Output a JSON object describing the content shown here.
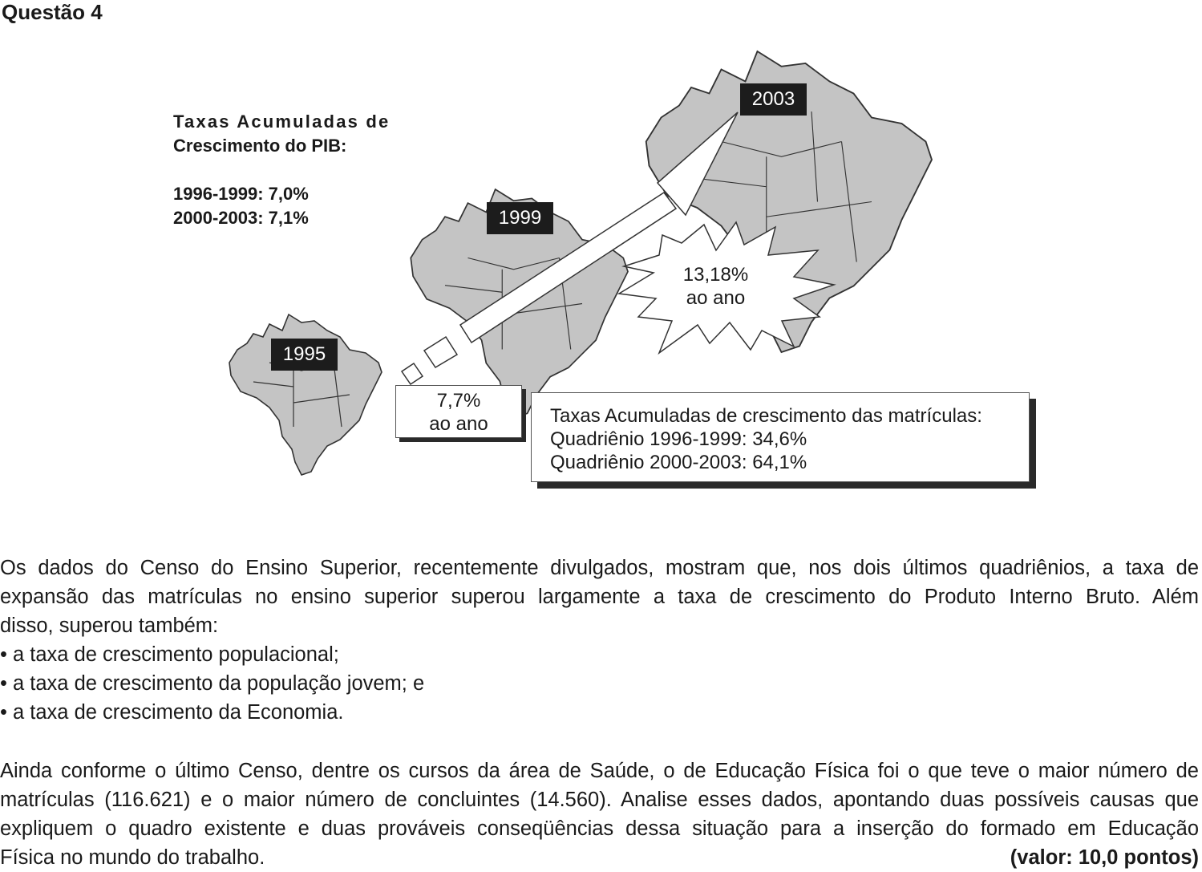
{
  "title": "Questão 4",
  "figure": {
    "pib": {
      "heading_line1": "Taxas Acumuladas de",
      "heading_line2": "Crescimento do PIB:",
      "rate1": "1996-1999:  7,0%",
      "rate2": "2000-2003:  7,1%"
    },
    "years": [
      "1995",
      "1999",
      "2003"
    ],
    "growth_small": {
      "value": "7,7%",
      "unit": "ao ano"
    },
    "growth_large": {
      "value": "13,18%",
      "unit": "ao ano"
    },
    "enrollment": {
      "heading": "Taxas Acumuladas de crescimento das matrículas:",
      "line1": "Quadriênio 1996-1999: 34,6%",
      "line2": "Quadriênio 2000-2003: 64,1%"
    },
    "colors": {
      "map_fill": "#c4c4c4",
      "label_bg": "#1c1c1c"
    }
  },
  "paragraph1": {
    "line1": "Os dados do Censo do Ensino Superior, recentemente divulgados, mostram que, nos dois últimos quadriênios, a taxa de",
    "line2": "expansão das matrículas no ensino superior superou largamente a taxa de crescimento do Produto Interno Bruto. Além",
    "line3": "disso, superou também:",
    "bullets": [
      "a taxa de crescimento populacional;",
      "a taxa de crescimento da população jovem; e",
      "a taxa de crescimento da Economia."
    ]
  },
  "paragraph2": {
    "line1": "Ainda conforme o último Censo, dentre os cursos da área de Saúde, o de Educação Física foi o que teve o maior número de",
    "line2": "matrículas (116.621) e o maior número de concluintes (14.560). Analise esses dados, apontando duas possíveis causas que",
    "line3": "expliquem o quadro existente e duas prováveis conseqüências dessa situação para a inserção do formado em Educação",
    "line4": "Física no mundo do trabalho.",
    "score": "(valor: 10,0 pontos)"
  }
}
